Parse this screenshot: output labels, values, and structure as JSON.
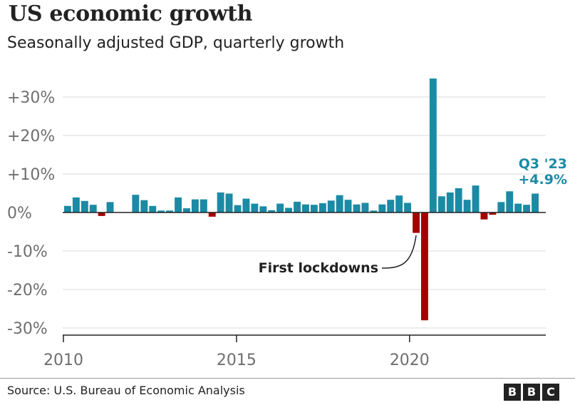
{
  "header": {
    "title": "US economic growth",
    "subtitle": "Seasonally adjusted GDP, quarterly growth"
  },
  "footer": {
    "source": "Source: U.S. Bureau of Economic Analysis",
    "logo_letters": [
      "B",
      "B",
      "C"
    ]
  },
  "colors": {
    "positive": "#1b8aa5",
    "negative": "#a50000",
    "grid": "#d9d9d9",
    "axis": "#222222",
    "tick_text": "#6e6e6e",
    "callout": "#1b8aa5"
  },
  "chart_data": {
    "type": "bar",
    "x_start": 2010.0,
    "x_step": 0.25,
    "xlim": [
      2010.0,
      2023.75
    ],
    "ylim": [
      -32,
      36
    ],
    "yticks": [
      -30,
      -20,
      -10,
      0,
      10,
      20,
      30
    ],
    "ytick_labels": [
      "-30%",
      "-20%",
      "-10%",
      "0%",
      "+10%",
      "+20%",
      "+30%"
    ],
    "xticks": [
      2010,
      2015,
      2020
    ],
    "xtick_labels": [
      "2010",
      "2015",
      "2020"
    ],
    "grid": true,
    "values": [
      1.7,
      3.9,
      3.0,
      2.0,
      -0.9,
      2.7,
      0,
      0,
      4.6,
      3.2,
      1.7,
      0.5,
      0.5,
      3.9,
      1.1,
      3.4,
      3.4,
      -1.1,
      5.2,
      4.9,
      1.9,
      3.6,
      2.3,
      1.6,
      0.6,
      2.3,
      1.2,
      2.8,
      2.1,
      2.0,
      2.4,
      3.1,
      4.5,
      3.3,
      2.1,
      2.5,
      0.5,
      2.1,
      3.3,
      4.4,
      2.5,
      -5.3,
      -28.0,
      34.8,
      4.2,
      5.2,
      6.3,
      3.3,
      7.0,
      -1.8,
      -0.6,
      2.7,
      5.5,
      2.3,
      2.0,
      4.9
    ],
    "annotations": [
      {
        "text": "First lockdowns"
      },
      {
        "lines": [
          "Q3 '23",
          "+4.9%"
        ]
      }
    ]
  }
}
